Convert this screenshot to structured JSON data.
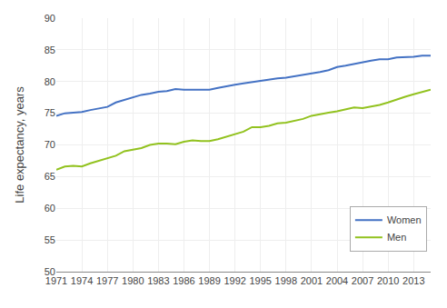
{
  "chart_data": {
    "type": "line",
    "ylabel": "Life expectancy, years",
    "x": [
      1971,
      1972,
      1973,
      1974,
      1975,
      1976,
      1977,
      1978,
      1979,
      1980,
      1981,
      1982,
      1983,
      1984,
      1985,
      1986,
      1987,
      1988,
      1989,
      1990,
      1991,
      1992,
      1993,
      1994,
      1995,
      1996,
      1997,
      1998,
      1999,
      2000,
      2001,
      2002,
      2003,
      2004,
      2005,
      2006,
      2007,
      2008,
      2009,
      2010,
      2011,
      2012,
      2013,
      2014,
      2015
    ],
    "series": [
      {
        "name": "Women",
        "color": "#4472C4",
        "values": [
          74.6,
          75.0,
          75.1,
          75.2,
          75.5,
          75.7,
          76.0,
          76.7,
          77.1,
          77.5,
          77.9,
          78.1,
          78.4,
          78.5,
          78.8,
          78.7,
          78.7,
          78.7,
          78.7,
          79.0,
          79.3,
          79.5,
          79.7,
          79.9,
          80.2,
          80.4,
          80.5,
          80.6,
          80.8,
          81.0,
          81.2,
          81.5,
          81.8,
          82.3,
          82.5,
          82.8,
          83.1,
          83.3,
          83.5,
          83.5,
          83.8,
          83.8,
          83.9,
          84.1,
          84.1
        ]
      },
      {
        "name": "Men",
        "color": "#92C21F",
        "values": [
          66.1,
          66.6,
          66.7,
          66.6,
          67.1,
          67.5,
          67.9,
          68.3,
          69.0,
          69.2,
          69.5,
          70.0,
          70.2,
          70.2,
          70.1,
          70.5,
          70.7,
          70.6,
          70.6,
          70.9,
          71.3,
          71.7,
          72.1,
          72.8,
          72.8,
          73.0,
          73.4,
          73.5,
          73.8,
          74.1,
          74.6,
          74.9,
          75.1,
          75.3,
          75.6,
          75.9,
          75.8,
          76.0,
          76.3,
          76.7,
          77.2,
          77.6,
          78.0,
          78.3,
          78.7
        ]
      }
    ],
    "xlim": [
      1971,
      2015
    ],
    "xticks": [
      1971,
      1974,
      1977,
      1980,
      1983,
      1986,
      1989,
      1992,
      1995,
      1998,
      2001,
      2004,
      2007,
      2010,
      2013
    ],
    "ylim": [
      50,
      90
    ],
    "yticks": [
      50,
      55,
      60,
      65,
      70,
      75,
      80,
      85,
      90
    ],
    "grid": true,
    "legend": "lower right"
  }
}
